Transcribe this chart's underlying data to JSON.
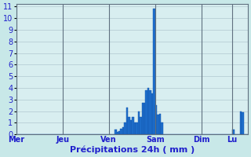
{
  "title": "Précipitations 24h ( mm )",
  "background_color": "#c8e8e8",
  "plot_background": "#d8eef0",
  "bar_color": "#1e6fcc",
  "bar_edge_color": "#1050aa",
  "grid_color": "#b0c8d0",
  "ylim": [
    0,
    11.2
  ],
  "yticks": [
    0,
    1,
    2,
    3,
    4,
    5,
    6,
    7,
    8,
    9,
    10,
    11
  ],
  "day_labels": [
    "Mer",
    "Jeu",
    "Ven",
    "Sam",
    "Dim",
    "Lu"
  ],
  "day_positions": [
    0,
    24,
    48,
    72,
    96,
    112
  ],
  "num_bars": 120,
  "bar_values": [
    0,
    0,
    0,
    0,
    0,
    0,
    0,
    0,
    0,
    0,
    0,
    0,
    0,
    0,
    0,
    0,
    0,
    0,
    0,
    0,
    0,
    0,
    0,
    0,
    0,
    0,
    0,
    0,
    0,
    0,
    0,
    0,
    0,
    0,
    0,
    0,
    0,
    0,
    0,
    0,
    0,
    0,
    0,
    0,
    0,
    0,
    0,
    0,
    0,
    0,
    0,
    0.4,
    0.2,
    0.3,
    0.5,
    0.6,
    1.0,
    2.3,
    1.5,
    1.2,
    1.5,
    1.0,
    1.0,
    2.0,
    1.5,
    2.7,
    2.7,
    3.8,
    4.0,
    3.8,
    3.5,
    10.8,
    2.5,
    1.7,
    1.8,
    1.0,
    0,
    0,
    0,
    0,
    0,
    0,
    0,
    0,
    0,
    0,
    0,
    0,
    0,
    0,
    0,
    0,
    0,
    0,
    0,
    0,
    0,
    0,
    0,
    0,
    0,
    0,
    0,
    0,
    0,
    0,
    0,
    0,
    0,
    0,
    0,
    0,
    0.4,
    0,
    0,
    0,
    2.0,
    1.9,
    0,
    0
  ]
}
